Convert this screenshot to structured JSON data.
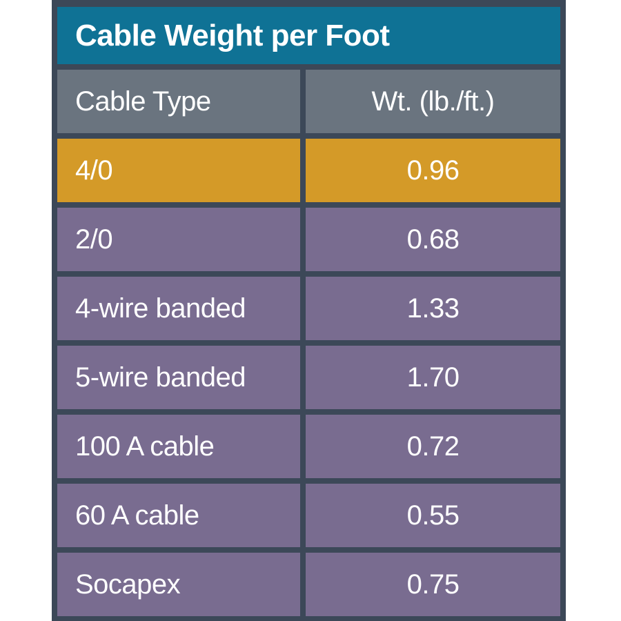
{
  "table": {
    "title": "Cable Weight per Foot",
    "header": {
      "col1": "Cable Type",
      "col2": "Wt. (lb./ft.)"
    },
    "rows": [
      {
        "type": "4/0",
        "weight": "0.96",
        "highlight": true
      },
      {
        "type": "2/0",
        "weight": "0.68",
        "highlight": false
      },
      {
        "type": "4-wire banded",
        "weight": "1.33",
        "highlight": false
      },
      {
        "type": "5-wire banded",
        "weight": "1.70",
        "highlight": false
      },
      {
        "type": "100 A cable",
        "weight": "0.72",
        "highlight": false
      },
      {
        "type": "60 A cable",
        "weight": "0.55",
        "highlight": false
      },
      {
        "type": "Socapex",
        "weight": "0.75",
        "highlight": false
      }
    ]
  },
  "colors": {
    "page_bg": "#ffffff",
    "frame": "#3c4858",
    "title_bg": "#0f7295",
    "header_bg": "#6a747f",
    "row_bg": "#796c90",
    "highlight_bg": "#d49a28",
    "text": "#ffffff"
  },
  "chart_data": {
    "type": "table",
    "title": "Cable Weight per Foot",
    "columns": [
      "Cable Type",
      "Wt. (lb./ft.)"
    ],
    "rows": [
      [
        "4/0",
        "0.96"
      ],
      [
        "2/0",
        "0.68"
      ],
      [
        "4-wire banded",
        "1.33"
      ],
      [
        "5-wire banded",
        "1.70"
      ],
      [
        "100 A cable",
        "0.72"
      ],
      [
        "60 A cable",
        "0.55"
      ],
      [
        "Socapex",
        "0.75"
      ]
    ],
    "highlighted_row": "4/0",
    "layout": {
      "header_row": true,
      "title_bar": true,
      "grid": "thick navy dividers"
    }
  }
}
